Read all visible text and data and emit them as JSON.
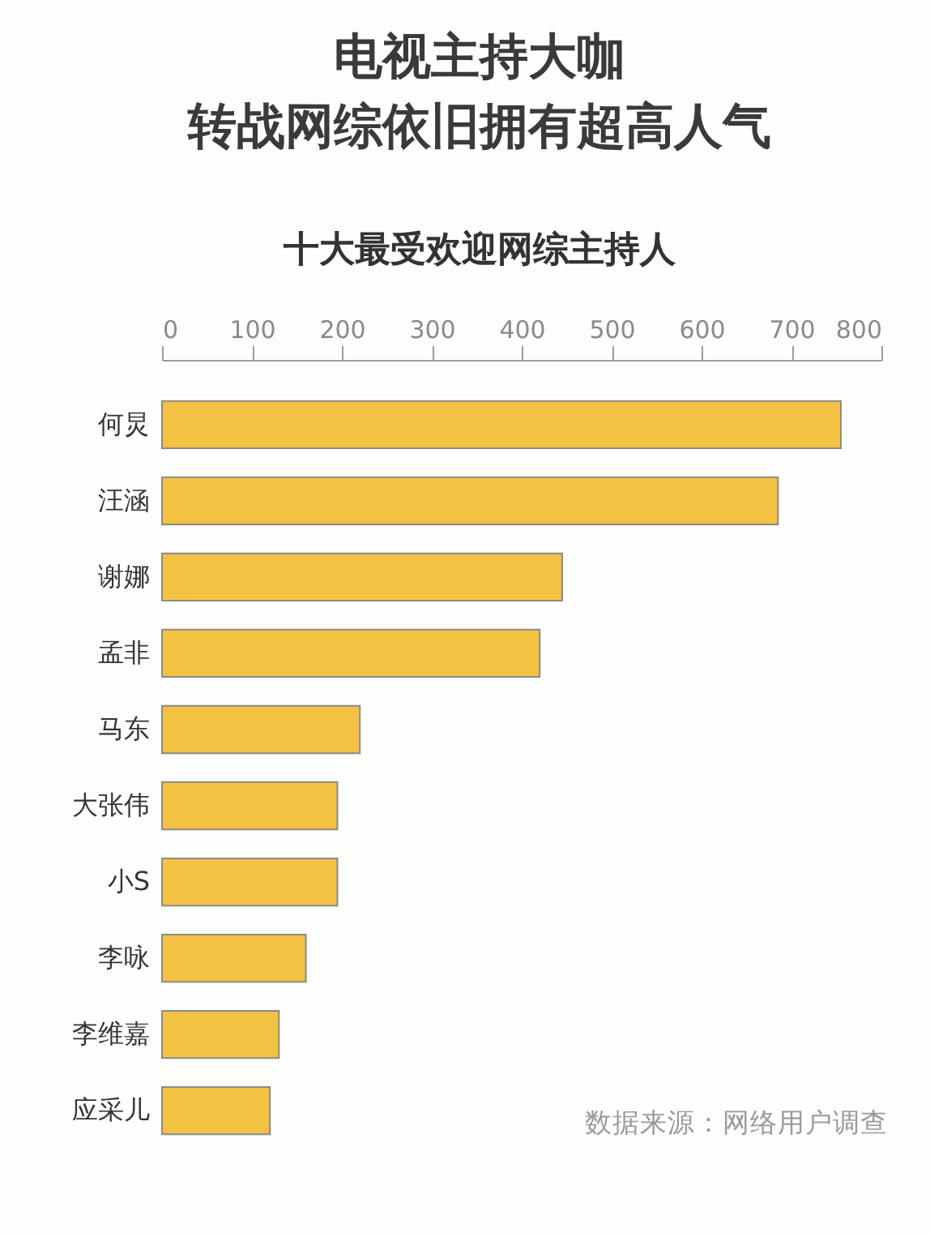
{
  "chart_data": {
    "type": "bar",
    "orientation": "horizontal",
    "title": "电视主持大咖转战网综依旧拥有超高人气",
    "subtitle": "十大最受欢迎网综主持人",
    "categories": [
      "何炅",
      "汪涵",
      "谢娜",
      "孟非",
      "马东",
      "大张伟",
      "小S",
      "李咏",
      "李维嘉",
      "应采儿"
    ],
    "values": [
      755,
      685,
      445,
      420,
      220,
      195,
      195,
      160,
      130,
      120
    ],
    "color": "#f4c242",
    "xlim": [
      0,
      800
    ],
    "xticks": [
      0,
      100,
      200,
      300,
      400,
      500,
      600,
      700,
      800
    ],
    "grid": false,
    "annotations": [
      "数据来源：网络用户调查"
    ]
  }
}
